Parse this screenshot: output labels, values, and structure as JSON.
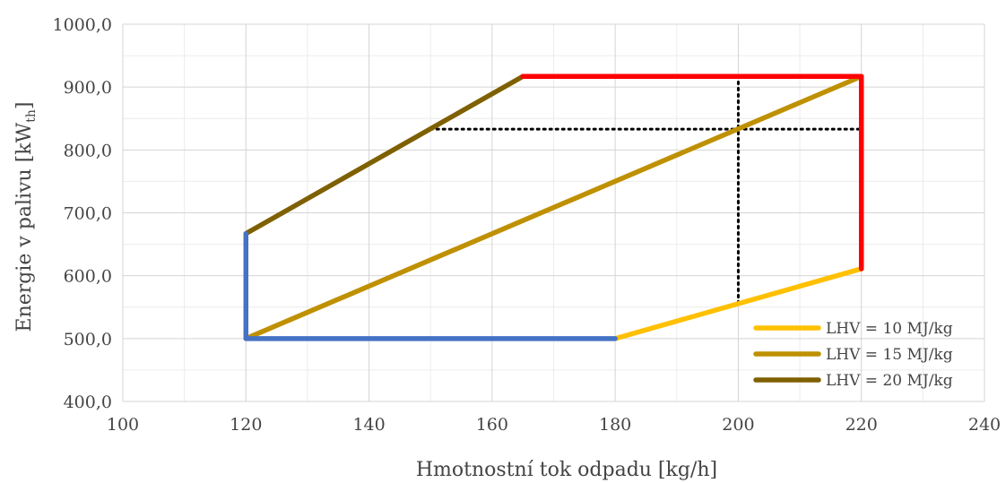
{
  "chart_data": {
    "type": "line",
    "xlabel": "Hmotnostní tok odpadu [kg/h]",
    "ylabel_main": "Energie v palivu [kW",
    "ylabel_sub": "th",
    "ylabel_end": "]",
    "xlim": [
      100,
      240
    ],
    "ylim": [
      400,
      1000
    ],
    "x_ticks": [
      100,
      120,
      140,
      160,
      180,
      200,
      220,
      240
    ],
    "y_ticks": [
      400,
      500,
      600,
      700,
      800,
      900,
      1000
    ],
    "x_tick_labels": [
      "100",
      "120",
      "140",
      "160",
      "180",
      "200",
      "220",
      "240"
    ],
    "y_tick_labels": [
      "400,0",
      "500,0",
      "600,0",
      "700,0",
      "800,0",
      "900,0",
      "1000,0"
    ],
    "x_minor_step": 10,
    "y_minor_step": 50,
    "grid": true,
    "legend_position": "bottom-right",
    "series": [
      {
        "name": "LHV = 10 MJ/kg",
        "color": "#FFC000",
        "x": [
          180,
          220
        ],
        "y": [
          500,
          611
        ],
        "in_legend": true
      },
      {
        "name": "LHV = 15 MJ/kg",
        "color": "#BF9000",
        "x": [
          120,
          220
        ],
        "y": [
          500,
          917
        ],
        "in_legend": true
      },
      {
        "name": "LHV = 20 MJ/kg",
        "color": "#7F6000",
        "x": [
          120,
          165
        ],
        "y": [
          667,
          917
        ],
        "in_legend": true
      },
      {
        "color": "#4472C4",
        "x": [
          120,
          120,
          180
        ],
        "y": [
          667,
          500,
          500
        ],
        "in_legend": false
      },
      {
        "color": "#FF0000",
        "x": [
          165,
          220,
          220
        ],
        "y": [
          917,
          917,
          611
        ],
        "in_legend": false
      }
    ],
    "guides": [
      {
        "x": [
          150,
          220
        ],
        "y": [
          833,
          833
        ]
      },
      {
        "x": [
          200,
          200
        ],
        "y": [
          556,
          917
        ]
      }
    ]
  }
}
